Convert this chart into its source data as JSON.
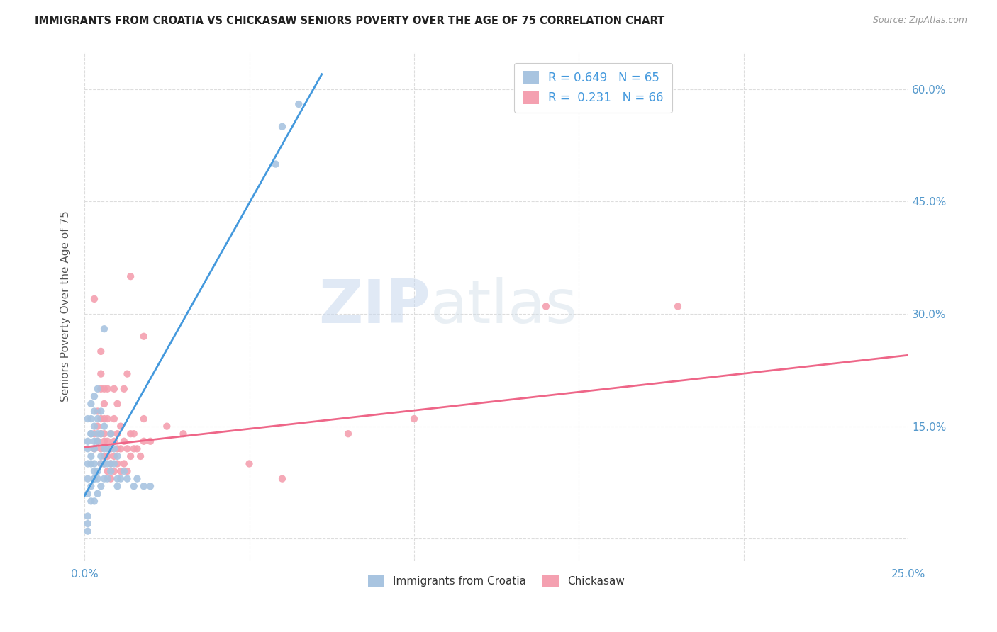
{
  "title": "IMMIGRANTS FROM CROATIA VS CHICKASAW SENIORS POVERTY OVER THE AGE OF 75 CORRELATION CHART",
  "source": "Source: ZipAtlas.com",
  "ylabel": "Seniors Poverty Over the Age of 75",
  "xlim": [
    0.0,
    0.25
  ],
  "ylim": [
    -0.03,
    0.65
  ],
  "croatia_R": 0.649,
  "croatia_N": 65,
  "chickasaw_R": 0.231,
  "chickasaw_N": 66,
  "croatia_color": "#a8c4e0",
  "chickasaw_color": "#f4a0b0",
  "croatia_line_color": "#4499dd",
  "chickasaw_line_color": "#ee6688",
  "watermark_zip": "ZIP",
  "watermark_atlas": "atlas",
  "background_color": "#ffffff",
  "grid_color": "#dddddd",
  "croatia_line_x": [
    0.0,
    0.072
  ],
  "croatia_line_y": [
    0.057,
    0.62
  ],
  "chickasaw_line_x": [
    0.0,
    0.25
  ],
  "chickasaw_line_y": [
    0.122,
    0.245
  ],
  "croatia_scatter": [
    [
      0.001,
      0.1
    ],
    [
      0.001,
      0.08
    ],
    [
      0.001,
      0.16
    ],
    [
      0.001,
      0.13
    ],
    [
      0.001,
      0.12
    ],
    [
      0.002,
      0.05
    ],
    [
      0.002,
      0.07
    ],
    [
      0.002,
      0.1
    ],
    [
      0.002,
      0.11
    ],
    [
      0.002,
      0.14
    ],
    [
      0.002,
      0.16
    ],
    [
      0.002,
      0.14
    ],
    [
      0.002,
      0.18
    ],
    [
      0.003,
      0.05
    ],
    [
      0.003,
      0.08
    ],
    [
      0.003,
      0.08
    ],
    [
      0.003,
      0.09
    ],
    [
      0.003,
      0.1
    ],
    [
      0.003,
      0.12
    ],
    [
      0.003,
      0.13
    ],
    [
      0.003,
      0.15
    ],
    [
      0.003,
      0.17
    ],
    [
      0.003,
      0.19
    ],
    [
      0.004,
      0.06
    ],
    [
      0.004,
      0.08
    ],
    [
      0.004,
      0.09
    ],
    [
      0.004,
      0.13
    ],
    [
      0.004,
      0.14
    ],
    [
      0.004,
      0.16
    ],
    [
      0.004,
      0.2
    ],
    [
      0.005,
      0.07
    ],
    [
      0.005,
      0.1
    ],
    [
      0.005,
      0.11
    ],
    [
      0.005,
      0.14
    ],
    [
      0.005,
      0.17
    ],
    [
      0.006,
      0.08
    ],
    [
      0.006,
      0.1
    ],
    [
      0.006,
      0.12
    ],
    [
      0.006,
      0.15
    ],
    [
      0.006,
      0.28
    ],
    [
      0.007,
      0.08
    ],
    [
      0.007,
      0.1
    ],
    [
      0.007,
      0.12
    ],
    [
      0.008,
      0.09
    ],
    [
      0.008,
      0.1
    ],
    [
      0.008,
      0.14
    ],
    [
      0.009,
      0.1
    ],
    [
      0.009,
      0.12
    ],
    [
      0.01,
      0.07
    ],
    [
      0.01,
      0.08
    ],
    [
      0.01,
      0.11
    ],
    [
      0.011,
      0.08
    ],
    [
      0.012,
      0.09
    ],
    [
      0.013,
      0.08
    ],
    [
      0.015,
      0.07
    ],
    [
      0.016,
      0.08
    ],
    [
      0.018,
      0.07
    ],
    [
      0.02,
      0.07
    ],
    [
      0.058,
      0.5
    ],
    [
      0.06,
      0.55
    ],
    [
      0.065,
      0.58
    ],
    [
      0.001,
      0.01
    ],
    [
      0.001,
      0.02
    ],
    [
      0.001,
      0.03
    ],
    [
      0.001,
      0.06
    ]
  ],
  "chickasaw_scatter": [
    [
      0.003,
      0.12
    ],
    [
      0.003,
      0.14
    ],
    [
      0.004,
      0.13
    ],
    [
      0.004,
      0.15
    ],
    [
      0.004,
      0.17
    ],
    [
      0.005,
      0.1
    ],
    [
      0.005,
      0.12
    ],
    [
      0.005,
      0.14
    ],
    [
      0.005,
      0.16
    ],
    [
      0.005,
      0.2
    ],
    [
      0.005,
      0.22
    ],
    [
      0.005,
      0.25
    ],
    [
      0.006,
      0.1
    ],
    [
      0.006,
      0.11
    ],
    [
      0.006,
      0.13
    ],
    [
      0.006,
      0.14
    ],
    [
      0.006,
      0.16
    ],
    [
      0.006,
      0.18
    ],
    [
      0.006,
      0.2
    ],
    [
      0.007,
      0.09
    ],
    [
      0.007,
      0.11
    ],
    [
      0.007,
      0.13
    ],
    [
      0.007,
      0.16
    ],
    [
      0.007,
      0.2
    ],
    [
      0.008,
      0.08
    ],
    [
      0.008,
      0.1
    ],
    [
      0.008,
      0.12
    ],
    [
      0.008,
      0.14
    ],
    [
      0.009,
      0.09
    ],
    [
      0.009,
      0.11
    ],
    [
      0.009,
      0.13
    ],
    [
      0.009,
      0.16
    ],
    [
      0.009,
      0.2
    ],
    [
      0.01,
      0.1
    ],
    [
      0.01,
      0.12
    ],
    [
      0.01,
      0.14
    ],
    [
      0.01,
      0.18
    ],
    [
      0.011,
      0.09
    ],
    [
      0.011,
      0.12
    ],
    [
      0.011,
      0.15
    ],
    [
      0.012,
      0.1
    ],
    [
      0.012,
      0.13
    ],
    [
      0.012,
      0.2
    ],
    [
      0.013,
      0.09
    ],
    [
      0.013,
      0.12
    ],
    [
      0.013,
      0.22
    ],
    [
      0.014,
      0.11
    ],
    [
      0.014,
      0.14
    ],
    [
      0.014,
      0.35
    ],
    [
      0.015,
      0.12
    ],
    [
      0.015,
      0.14
    ],
    [
      0.016,
      0.12
    ],
    [
      0.017,
      0.11
    ],
    [
      0.018,
      0.13
    ],
    [
      0.018,
      0.16
    ],
    [
      0.018,
      0.27
    ],
    [
      0.02,
      0.13
    ],
    [
      0.025,
      0.15
    ],
    [
      0.03,
      0.14
    ],
    [
      0.05,
      0.1
    ],
    [
      0.08,
      0.14
    ],
    [
      0.1,
      0.16
    ],
    [
      0.14,
      0.31
    ],
    [
      0.18,
      0.31
    ],
    [
      0.06,
      0.08
    ],
    [
      0.003,
      0.32
    ]
  ]
}
